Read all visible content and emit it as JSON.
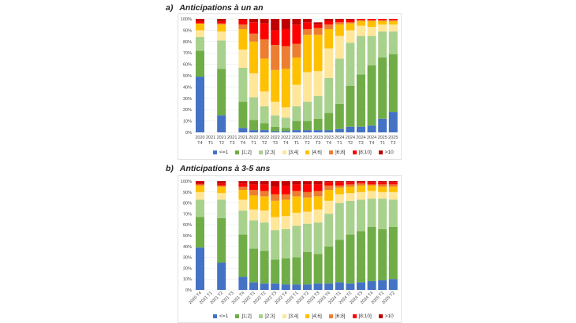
{
  "titles": {
    "a": {
      "label": "a)",
      "text": "Anticipations à un an"
    },
    "b": {
      "label": "b)",
      "text": "Anticipations à 3-5 ans"
    }
  },
  "legend": [
    {
      "name": "<=1",
      "color": "#4472c4"
    },
    {
      "name": "]1;2]",
      "color": "#70ad47"
    },
    {
      "name": "]2;3]",
      "color": "#a9d18e"
    },
    {
      "name": "]3;4]",
      "color": "#ffe699"
    },
    {
      "name": "]4;6]",
      "color": "#ffc000"
    },
    {
      "name": "]6;8]",
      "color": "#ed7d31"
    },
    {
      "name": "]8;10]",
      "color": "#ff0000"
    },
    {
      "name": ">10",
      "color": "#c00000"
    }
  ],
  "chart_data": [
    {
      "type": "bar",
      "stacked": true,
      "title": "Anticipations à un an",
      "ylim": [
        0,
        100
      ],
      "yticks": [
        "0%",
        "10%",
        "20%",
        "30%",
        "40%",
        "50%",
        "60%",
        "70%",
        "80%",
        "90%",
        "100%"
      ],
      "categories": [
        {
          "year": "2020",
          "q": "T4"
        },
        {
          "year": "2021",
          "q": "T1"
        },
        {
          "year": "2021",
          "q": "T2"
        },
        {
          "year": "2021",
          "q": "T3"
        },
        {
          "year": "2021",
          "q": "T4"
        },
        {
          "year": "2022",
          "q": "T1"
        },
        {
          "year": "2022",
          "q": "T2"
        },
        {
          "year": "2022",
          "q": "T3"
        },
        {
          "year": "2022",
          "q": "T4"
        },
        {
          "year": "2023",
          "q": "T1"
        },
        {
          "year": "2023",
          "q": "T2"
        },
        {
          "year": "2023",
          "q": "T3"
        },
        {
          "year": "2023",
          "q": "T4"
        },
        {
          "year": "2024",
          "q": "T1"
        },
        {
          "year": "2024",
          "q": "T2"
        },
        {
          "year": "2024",
          "q": "T3"
        },
        {
          "year": "2024",
          "q": "T4"
        },
        {
          "year": "2025",
          "q": "T1"
        },
        {
          "year": "2025",
          "q": "T2"
        }
      ],
      "series": [
        {
          "name": "<=1",
          "values": [
            49,
            null,
            15,
            null,
            4,
            2,
            2,
            1,
            1,
            2,
            2,
            2,
            2,
            3,
            5,
            5,
            6,
            12,
            18
          ]
        },
        {
          "name": "]1;2]",
          "values": [
            23,
            null,
            41,
            null,
            23,
            9,
            6,
            4,
            3,
            8,
            8,
            10,
            15,
            22,
            36,
            46,
            53,
            54,
            51
          ]
        },
        {
          "name": "]2;3]",
          "values": [
            12,
            null,
            25,
            null,
            30,
            20,
            15,
            10,
            9,
            13,
            17,
            20,
            31,
            40,
            38,
            34,
            26,
            23,
            20
          ]
        },
        {
          "name": "]3;4]",
          "values": [
            6,
            null,
            8,
            null,
            16,
            21,
            13,
            12,
            9,
            19,
            26,
            22,
            26,
            20,
            11,
            9,
            8,
            6,
            6
          ]
        },
        {
          "name": "]4;6]",
          "values": [
            6,
            null,
            6,
            null,
            18,
            28,
            29,
            28,
            34,
            24,
            33,
            32,
            17,
            10,
            6,
            4,
            5,
            3,
            3
          ]
        },
        {
          "name": "]6;8]",
          "values": [
            0,
            null,
            1,
            null,
            4,
            7,
            17,
            22,
            20,
            12,
            5,
            6,
            4,
            2,
            1,
            1,
            1,
            1,
            1
          ]
        },
        {
          "name": "]8;10]",
          "values": [
            2,
            null,
            2,
            null,
            4,
            10,
            14,
            13,
            15,
            17,
            6,
            3,
            3,
            2,
            2,
            1,
            1,
            1,
            1
          ]
        },
        {
          "name": ">10",
          "values": [
            2,
            null,
            2,
            null,
            1,
            3,
            4,
            10,
            9,
            5,
            3,
            2,
            2,
            1,
            1,
            0,
            0,
            0,
            0
          ]
        }
      ]
    },
    {
      "type": "bar",
      "stacked": true,
      "title": "Anticipations à 3-5 ans",
      "ylim": [
        0,
        100
      ],
      "yticks": [
        "0%",
        "10%",
        "20%",
        "30%",
        "40%",
        "50%",
        "60%",
        "70%",
        "80%",
        "90%",
        "100%"
      ],
      "categories": [
        {
          "label": "2020 T4"
        },
        {
          "label": "2021 T1"
        },
        {
          "label": "2021 T2"
        },
        {
          "label": "2021 T3"
        },
        {
          "label": "2021 T4"
        },
        {
          "label": "2022 T1"
        },
        {
          "label": "2022 T2"
        },
        {
          "label": "2022 T3"
        },
        {
          "label": "2022 T4"
        },
        {
          "label": "2023 T1"
        },
        {
          "label": "2023 T2"
        },
        {
          "label": "2023 T3"
        },
        {
          "label": "2023 T4"
        },
        {
          "label": "2024 T1"
        },
        {
          "label": "2024 T2"
        },
        {
          "label": "2024 T3"
        },
        {
          "label": "2024 T4"
        },
        {
          "label": "2025 T1"
        },
        {
          "label": "2025 T2"
        }
      ],
      "series": [
        {
          "name": "<=1",
          "values": [
            39,
            null,
            25,
            null,
            12,
            7,
            6,
            6,
            5,
            5,
            5,
            6,
            6,
            7,
            6,
            7,
            8,
            9,
            10
          ]
        },
        {
          "name": "]1;2]",
          "values": [
            28,
            null,
            41,
            null,
            39,
            31,
            30,
            22,
            24,
            25,
            30,
            27,
            34,
            39,
            45,
            47,
            50,
            47,
            48
          ]
        },
        {
          "name": "]2;3]",
          "values": [
            16,
            null,
            17,
            null,
            22,
            26,
            26,
            27,
            27,
            29,
            26,
            29,
            30,
            34,
            31,
            29,
            26,
            28,
            25
          ]
        },
        {
          "name": "]3;4]",
          "values": [
            7,
            null,
            6,
            null,
            10,
            10,
            11,
            12,
            12,
            12,
            11,
            12,
            12,
            8,
            7,
            7,
            7,
            6,
            7
          ]
        },
        {
          "name": "]4;6]",
          "values": [
            6,
            null,
            6,
            null,
            9,
            13,
            13,
            15,
            15,
            15,
            13,
            12,
            10,
            6,
            6,
            6,
            5,
            5,
            5
          ]
        },
        {
          "name": "]6;8]",
          "values": [
            1,
            null,
            1,
            null,
            3,
            5,
            5,
            6,
            5,
            5,
            5,
            5,
            4,
            2,
            2,
            2,
            1,
            2,
            2
          ]
        },
        {
          "name": "]8;10]",
          "values": [
            1,
            null,
            2,
            null,
            3,
            5,
            6,
            7,
            8,
            6,
            7,
            6,
            3,
            3,
            2,
            1,
            2,
            2,
            2
          ]
        },
        {
          "name": ">10",
          "values": [
            2,
            null,
            2,
            null,
            2,
            3,
            3,
            5,
            4,
            3,
            3,
            3,
            1,
            1,
            1,
            1,
            1,
            1,
            1
          ]
        }
      ]
    }
  ]
}
